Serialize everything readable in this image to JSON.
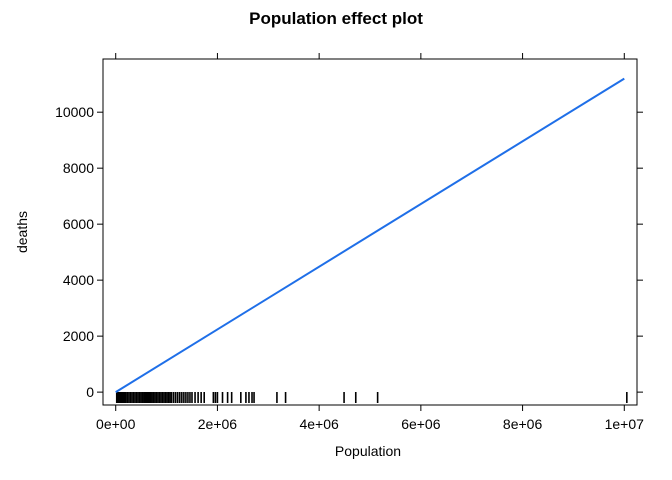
{
  "chart_data": {
    "type": "line",
    "title": "Population effect plot",
    "xlabel": "Population",
    "ylabel": "deaths",
    "xlim": [
      -250000,
      10250000
    ],
    "ylim": [
      -460,
      11900
    ],
    "x_ticks": [
      0,
      2000000,
      4000000,
      6000000,
      8000000,
      10000000
    ],
    "x_tick_labels": [
      "0e+00",
      "2e+06",
      "4e+06",
      "6e+06",
      "8e+06",
      "1e+07"
    ],
    "y_ticks": [
      0,
      2000,
      4000,
      6000,
      8000,
      10000
    ],
    "y_tick_labels": [
      "0",
      "2000",
      "4000",
      "6000",
      "8000",
      "10000"
    ],
    "grid": false,
    "series": [
      {
        "x": [
          0,
          10000000
        ],
        "y": [
          0,
          11200
        ],
        "color": "#1f6fe8"
      }
    ],
    "rug": [
      20000,
      40000,
      60000,
      80000,
      100000,
      120000,
      140000,
      160000,
      180000,
      200000,
      230000,
      260000,
      290000,
      320000,
      350000,
      380000,
      410000,
      440000,
      470000,
      500000,
      530000,
      560000,
      590000,
      620000,
      650000,
      680000,
      710000,
      740000,
      770000,
      800000,
      830000,
      860000,
      890000,
      920000,
      950000,
      980000,
      1010000,
      1040000,
      1070000,
      1100000,
      1140000,
      1180000,
      1220000,
      1260000,
      1300000,
      1340000,
      1380000,
      1420000,
      1460000,
      1500000,
      1560000,
      1620000,
      1680000,
      1740000,
      1920000,
      1960000,
      2000000,
      2100000,
      2200000,
      2280000,
      2460000,
      2560000,
      2620000,
      2680000,
      2720000,
      3170000,
      3340000,
      4490000,
      4720000,
      5150000,
      10050000
    ]
  }
}
